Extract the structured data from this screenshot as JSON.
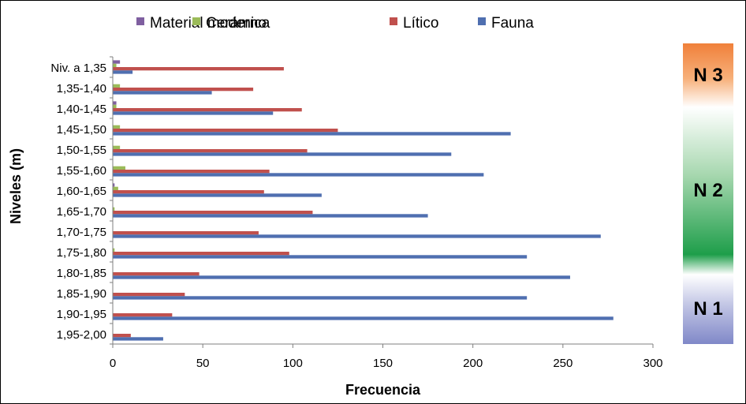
{
  "chart_data": {
    "type": "bar",
    "orientation": "horizontal",
    "xlabel": "Frecuencia",
    "ylabel": "Niveles (m)",
    "xlim": [
      0,
      300
    ],
    "xticks": [
      "0",
      "50",
      "100",
      "150",
      "200",
      "250",
      "300"
    ],
    "grid": false,
    "legend_position": "top",
    "categories": [
      "Niv. a 1,35",
      "1,35-1,40",
      "1,40-1,45",
      "1,45-1,50",
      "1,50-1,55",
      "1,55-1,60",
      "1,60-1,65",
      "1,65-1,70",
      "1,70-1,75",
      "1,75-1,80",
      "1,80-1,85",
      "1,85-1,90",
      "1,90-1,95",
      "1,95-2,00"
    ],
    "series": [
      {
        "name": "Material moderno",
        "color": "#7F5FA0",
        "values": [
          4,
          0,
          2,
          0,
          0,
          0,
          1,
          0,
          0,
          0,
          0,
          0,
          0,
          0
        ]
      },
      {
        "name": "Cerámica",
        "color": "#9BBB59",
        "values": [
          2,
          4,
          2,
          4,
          4,
          7,
          3,
          1,
          0,
          1,
          0,
          0,
          0,
          0
        ]
      },
      {
        "name": "Lítico",
        "color": "#C0504D",
        "values": [
          95,
          78,
          105,
          125,
          108,
          87,
          84,
          111,
          81,
          98,
          48,
          40,
          33,
          10
        ]
      },
      {
        "name": "Fauna",
        "color": "#4F6FB0",
        "values": [
          11,
          55,
          89,
          221,
          188,
          206,
          116,
          175,
          271,
          230,
          254,
          230,
          278,
          28
        ]
      }
    ],
    "legend_order": [
      "Material moderno",
      "Cerámica",
      "Lítico",
      "Fauna"
    ]
  },
  "side_band": {
    "labels": [
      "N 3",
      "N 2",
      "N 1"
    ],
    "colors": {
      "n3": "#F0803A",
      "n2": "#1E9E4A",
      "n1": "#8088C8"
    }
  }
}
